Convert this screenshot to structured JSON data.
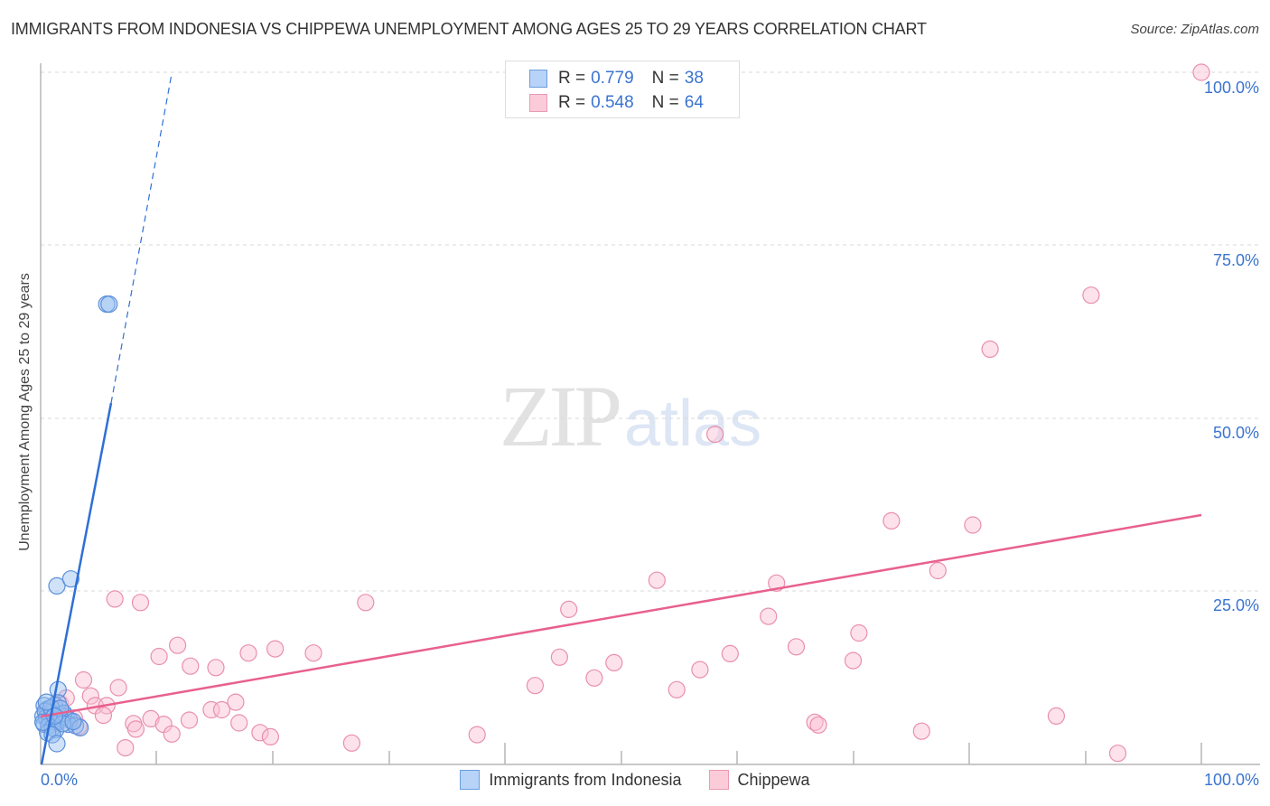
{
  "title": "IMMIGRANTS FROM INDONESIA VS CHIPPEWA UNEMPLOYMENT AMONG AGES 25 TO 29 YEARS CORRELATION CHART",
  "source": "Source: ZipAtlas.com",
  "watermark": {
    "zip": "ZIP",
    "atlas": "atlas"
  },
  "legend": {
    "series": [
      {
        "r_label": "R =",
        "r_value": "0.779",
        "n_label": "N =",
        "n_value": "38",
        "fill": "#b7d3f7",
        "stroke": "#6a9ee0"
      },
      {
        "r_label": "R =",
        "r_value": "0.548",
        "n_label": "N =",
        "n_value": "64",
        "fill": "#fbcbd9",
        "stroke": "#ea9ab3"
      }
    ]
  },
  "bottom_legend": [
    {
      "label": "Immigrants from Indonesia",
      "fill": "#b7d3f7",
      "stroke": "#6a9ee0"
    },
    {
      "label": "Chippewa",
      "fill": "#fbcbd9",
      "stroke": "#ea9ab3"
    }
  ],
  "axes": {
    "x_ticks": [
      {
        "label": "0.0%"
      },
      {
        "label": "100.0%"
      }
    ],
    "y_ticks": [
      {
        "label": "100.0%"
      },
      {
        "label": "75.0%"
      },
      {
        "label": "50.0%"
      },
      {
        "label": "25.0%"
      }
    ],
    "ylabel": "Unemployment Among Ages 25 to 29 years"
  },
  "colors": {
    "blue": "#2f6fd6",
    "pink": "#e8608e",
    "tick_text": "#3a74d0"
  },
  "chart_data": {
    "type": "scatter",
    "title": "IMMIGRANTS FROM INDONESIA VS CHIPPEWA UNEMPLOYMENT AMONG AGES 25 TO 29 YEARS CORRELATION CHART",
    "xlabel": "",
    "ylabel": "Unemployment Among Ages 25 to 29 years",
    "xlim": [
      0,
      100
    ],
    "ylim": [
      0,
      100
    ],
    "grid": "horizontal dashed at 25, 50, 75, 100",
    "legend_position": "top-center and bottom",
    "series": [
      {
        "name": "Immigrants from Indonesia",
        "R": 0.779,
        "N": 38,
        "trendline": {
          "x0": 0,
          "y0": 0,
          "x1": 6.1,
          "y1": 52,
          "dashed_extension_to": [
            11.3,
            100
          ]
        },
        "points": [
          [
            5.7,
            66.5
          ],
          [
            5.9,
            66.5
          ],
          [
            1.4,
            25.8
          ],
          [
            2.6,
            26.8
          ],
          [
            1.5,
            10.8
          ],
          [
            0.3,
            8.5
          ],
          [
            0.6,
            8.0
          ],
          [
            1.2,
            8.6
          ],
          [
            1.5,
            8.9
          ],
          [
            0.9,
            7.5
          ],
          [
            0.2,
            7.0
          ],
          [
            0.5,
            6.8
          ],
          [
            0.8,
            6.5
          ],
          [
            1.1,
            6.2
          ],
          [
            1.4,
            6.0
          ],
          [
            1.8,
            6.6
          ],
          [
            2.2,
            6.9
          ],
          [
            2.5,
            6.4
          ],
          [
            0.3,
            5.8
          ],
          [
            0.7,
            5.6
          ],
          [
            1.0,
            5.3
          ],
          [
            1.3,
            5.0
          ],
          [
            1.6,
            7.2
          ],
          [
            2.0,
            7.4
          ],
          [
            0.4,
            7.7
          ],
          [
            0.9,
            8.2
          ],
          [
            1.7,
            8.1
          ],
          [
            2.4,
            5.8
          ],
          [
            3.0,
            5.6
          ],
          [
            3.4,
            5.3
          ],
          [
            0.6,
            4.6
          ],
          [
            1.0,
            4.3
          ],
          [
            1.4,
            3.0
          ],
          [
            0.2,
            6.1
          ],
          [
            0.5,
            9.0
          ],
          [
            1.9,
            5.9
          ],
          [
            2.8,
            6.2
          ],
          [
            1.2,
            7.0
          ]
        ]
      },
      {
        "name": "Chippewa",
        "R": 0.548,
        "N": 64,
        "trendline": {
          "x0": 0,
          "y0": 6.8,
          "x1": 100,
          "y1": 35.9
        },
        "points": [
          [
            100,
            100
          ],
          [
            90.5,
            67.8
          ],
          [
            81.8,
            60.0
          ],
          [
            58.1,
            47.7
          ],
          [
            73.3,
            35.2
          ],
          [
            80.3,
            34.6
          ],
          [
            77.3,
            28.0
          ],
          [
            53.1,
            26.6
          ],
          [
            63.4,
            26.2
          ],
          [
            62.7,
            21.4
          ],
          [
            70.5,
            19.0
          ],
          [
            6.4,
            23.9
          ],
          [
            8.6,
            23.4
          ],
          [
            28.0,
            23.4
          ],
          [
            45.5,
            22.4
          ],
          [
            11.8,
            17.2
          ],
          [
            10.2,
            15.6
          ],
          [
            17.9,
            16.1
          ],
          [
            20.2,
            16.7
          ],
          [
            23.5,
            16.1
          ],
          [
            44.7,
            15.5
          ],
          [
            59.4,
            16.0
          ],
          [
            65.1,
            17.0
          ],
          [
            70.0,
            15.0
          ],
          [
            12.9,
            14.2
          ],
          [
            15.1,
            14.0
          ],
          [
            49.4,
            14.7
          ],
          [
            56.8,
            13.7
          ],
          [
            47.7,
            12.5
          ],
          [
            42.6,
            11.4
          ],
          [
            54.8,
            10.8
          ],
          [
            3.7,
            12.2
          ],
          [
            6.7,
            11.1
          ],
          [
            4.3,
            9.9
          ],
          [
            4.7,
            8.5
          ],
          [
            5.7,
            8.5
          ],
          [
            1.7,
            8.8
          ],
          [
            2.2,
            9.6
          ],
          [
            16.8,
            9.0
          ],
          [
            14.7,
            7.9
          ],
          [
            15.6,
            7.9
          ],
          [
            5.4,
            7.1
          ],
          [
            2.9,
            6.7
          ],
          [
            9.5,
            6.6
          ],
          [
            12.8,
            6.4
          ],
          [
            8.0,
            5.9
          ],
          [
            10.6,
            5.8
          ],
          [
            17.1,
            6.0
          ],
          [
            8.2,
            5.1
          ],
          [
            11.3,
            4.4
          ],
          [
            18.9,
            4.6
          ],
          [
            19.8,
            4.0
          ],
          [
            37.6,
            4.3
          ],
          [
            26.8,
            3.1
          ],
          [
            7.3,
            2.4
          ],
          [
            66.7,
            6.1
          ],
          [
            67.0,
            5.7
          ],
          [
            75.9,
            4.8
          ],
          [
            87.5,
            7.0
          ],
          [
            92.8,
            1.6
          ],
          [
            1.2,
            6.4
          ],
          [
            2.0,
            7.0
          ],
          [
            1.0,
            5.8
          ],
          [
            3.3,
            5.5
          ]
        ]
      }
    ]
  }
}
